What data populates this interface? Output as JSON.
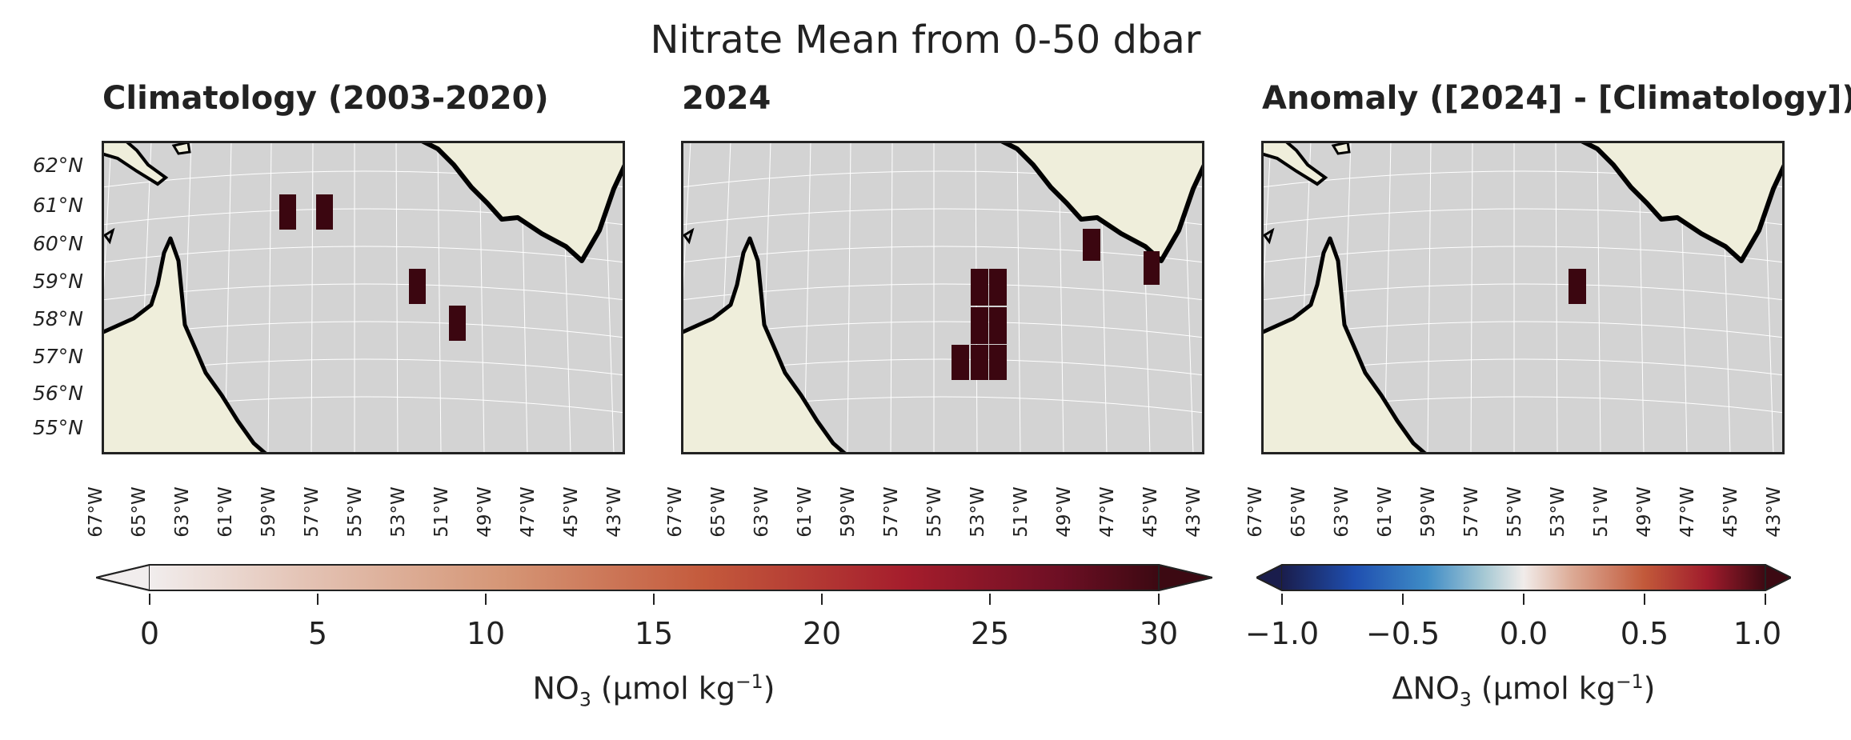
{
  "figure": {
    "title": "Nitrate Mean from 0-50 dbar"
  },
  "panels": [
    {
      "title": "Climatology (2003-2020)"
    },
    {
      "title": "2024"
    },
    {
      "title": "Anomaly ([2024] - [Climatology])"
    }
  ],
  "axes": {
    "lat_labels": [
      "62°N",
      "61°N",
      "60°N",
      "59°N",
      "58°N",
      "57°N",
      "56°N",
      "55°N"
    ],
    "lon_labels": [
      "67°W",
      "65°W",
      "63°W",
      "61°W",
      "59°W",
      "57°W",
      "55°W",
      "53°W",
      "51°W",
      "49°W",
      "47°W",
      "45°W",
      "43°W"
    ]
  },
  "colorbars": [
    {
      "label_main": "NO",
      "label_sub": "3",
      "label_unit_pre": " (μmol kg",
      "label_sup": "−1",
      "label_unit_post": ")",
      "range": [
        0,
        30
      ],
      "extend": "both",
      "ticks": [
        "0",
        "5",
        "10",
        "15",
        "20",
        "25",
        "30"
      ],
      "colormap": "amp (white → dark red)"
    },
    {
      "label_main": "ΔNO",
      "label_sub": "3",
      "label_unit_pre": " (μmol kg",
      "label_sup": "−1",
      "label_unit_post": ")",
      "range": [
        -1.0,
        1.0
      ],
      "extend": "both",
      "ticks": [
        "−1.0",
        "−0.5",
        "0.0",
        "0.5",
        "1.0"
      ],
      "colormap": "balance (dark blue → white → dark red)"
    }
  ],
  "colors": {
    "ocean": "#d3d3d3",
    "land": "#efeedb",
    "coast": "#000000",
    "gridline": "#ffffff",
    "cell": "#3b0610",
    "frame": "#222222"
  }
}
